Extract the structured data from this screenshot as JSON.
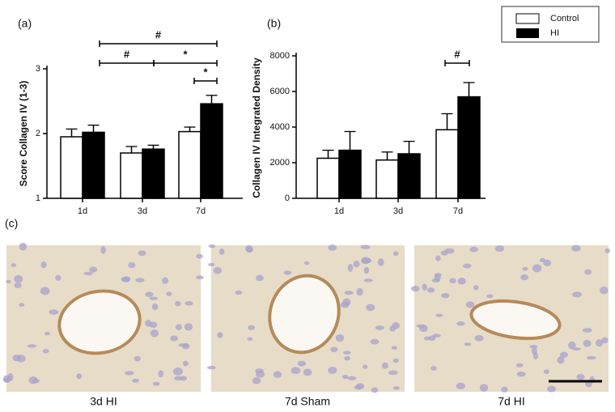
{
  "chart_data": [
    {
      "type": "bar",
      "panel_label": "(a)",
      "y_label": "Score Collagen IV (1-3)",
      "categories": [
        "1d",
        "3d",
        "7d"
      ],
      "series": [
        {
          "name": "Control",
          "color": "#ffffff",
          "values": [
            1.95,
            1.7,
            2.03
          ],
          "errors": [
            0.12,
            0.1,
            0.07
          ]
        },
        {
          "name": "HI",
          "color": "#000000",
          "values": [
            2.02,
            1.76,
            2.46
          ],
          "errors": [
            0.11,
            0.06,
            0.13
          ]
        }
      ],
      "ylim": [
        1,
        3
      ],
      "yticks": [
        1,
        2,
        3
      ],
      "annotations": [
        "#",
        "#",
        "*",
        "*"
      ]
    },
    {
      "type": "bar",
      "panel_label": "(b)",
      "y_label": "Collagen IV Integrated Density",
      "categories": [
        "1d",
        "3d",
        "7d"
      ],
      "series": [
        {
          "color": "#ffffff",
          "values": [
            2250,
            2150,
            3850
          ],
          "errors": [
            450,
            450,
            900
          ]
        },
        {
          "color": "#000000",
          "values": [
            2700,
            2500,
            5700
          ],
          "errors": [
            1050,
            700,
            800
          ]
        }
      ],
      "ylim": [
        0,
        8000
      ],
      "yticks": [
        0,
        2000,
        4000,
        6000,
        8000
      ],
      "annotations": [
        "#"
      ]
    }
  ],
  "images": {
    "panel_label": "(c)",
    "captions": [
      "3d HI",
      "7d Sham",
      "7d HI"
    ]
  }
}
